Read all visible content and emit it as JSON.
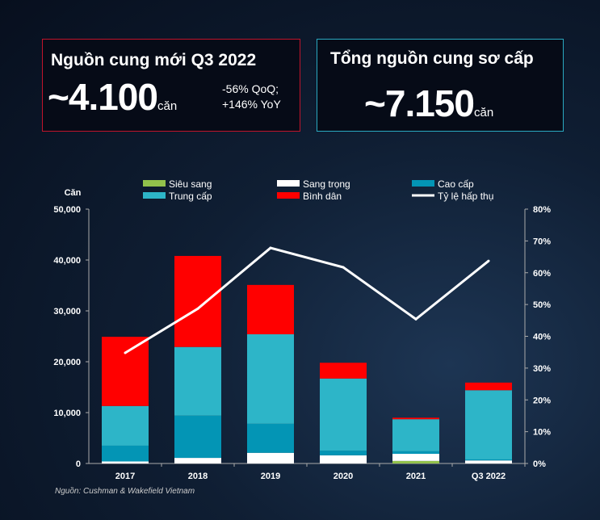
{
  "cards": [
    {
      "title": "Nguồn cung mới Q3 2022",
      "value": "~4.100",
      "unit": "căn",
      "note1": "-56% QoQ;",
      "note2": "+146% YoY"
    },
    {
      "title": "Tổng nguồn cung sơ cấp",
      "value": "~7.150",
      "unit": "căn"
    }
  ],
  "source": "Nguồn: Cushman & Wakefield Vietnam",
  "chart_data": {
    "type": "bar",
    "stacked": true,
    "ylabel": "Căn",
    "ylim": [
      0,
      50000
    ],
    "y2lim": [
      0,
      80
    ],
    "yticks": [
      "0",
      "10,000",
      "20,000",
      "30,000",
      "40,000",
      "50,000"
    ],
    "y2ticks": [
      "0%",
      "10%",
      "20%",
      "30%",
      "40%",
      "50%",
      "60%",
      "70%",
      "80%"
    ],
    "categories": [
      "2017",
      "2018",
      "2019",
      "2020",
      "2021",
      "Q3 2022"
    ],
    "series": [
      {
        "name": "Siêu sang",
        "color": "#92c14b",
        "values": [
          0,
          0,
          0,
          0,
          500,
          0
        ]
      },
      {
        "name": "Sang trọng",
        "color": "#ffffff",
        "values": [
          400,
          1100,
          2100,
          1600,
          1400,
          600
        ]
      },
      {
        "name": "Cao cấp",
        "color": "#0395b5",
        "values": [
          3100,
          8300,
          5700,
          900,
          500,
          200
        ]
      },
      {
        "name": "Trung cấp",
        "color": "#2db5c8",
        "values": [
          7800,
          13500,
          17600,
          14200,
          6300,
          13600
        ]
      },
      {
        "name": "Bình dân",
        "color": "#ff0000",
        "values": [
          13600,
          17900,
          9700,
          3100,
          300,
          1500
        ]
      }
    ],
    "line": {
      "name": "Tỷ lệ hấp thụ",
      "color": "#ffffff",
      "values": [
        34.8,
        48.7,
        67.8,
        61.7,
        45.4,
        63.7
      ],
      "axis": "right"
    },
    "legend": "top"
  }
}
